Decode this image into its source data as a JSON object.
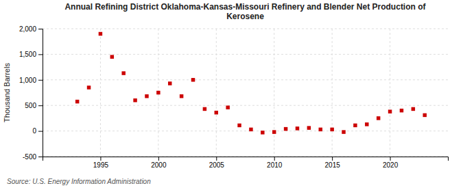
{
  "chart_data": {
    "type": "scatter",
    "title": "Annual Refining District Oklahoma-Kansas-Missouri Refinery and Blender Net Production of\nKerosene",
    "y_label": "Thousand Barrels",
    "annotations": [
      "Source: U.S. Energy Information Administration"
    ],
    "x": [
      1993,
      1994,
      1995,
      1996,
      1997,
      1998,
      1999,
      2000,
      2001,
      2002,
      2003,
      2004,
      2005,
      2006,
      2007,
      2008,
      2009,
      2010,
      2011,
      2012,
      2013,
      2014,
      2015,
      2016,
      2017,
      2018,
      2019,
      2020,
      2021,
      2022,
      2023
    ],
    "values": [
      575,
      850,
      1900,
      1450,
      1130,
      600,
      680,
      750,
      930,
      680,
      1000,
      430,
      360,
      460,
      110,
      30,
      -30,
      -20,
      40,
      50,
      60,
      30,
      30,
      -20,
      110,
      130,
      250,
      380,
      400,
      430,
      310
    ],
    "color": "#cc0000",
    "marker": "square",
    "xlim": [
      1990,
      2025
    ],
    "xticks": [
      1995,
      2000,
      2005,
      2010,
      2015,
      2020
    ],
    "ylim": [
      -500,
      2000
    ],
    "yticks": [
      -500,
      0,
      500,
      {
        "value": 1000,
        "label": "1,000"
      },
      {
        "value": 1500,
        "label": "1,500"
      },
      {
        "value": 2000,
        "label": "2,000"
      }
    ],
    "grid": true
  }
}
